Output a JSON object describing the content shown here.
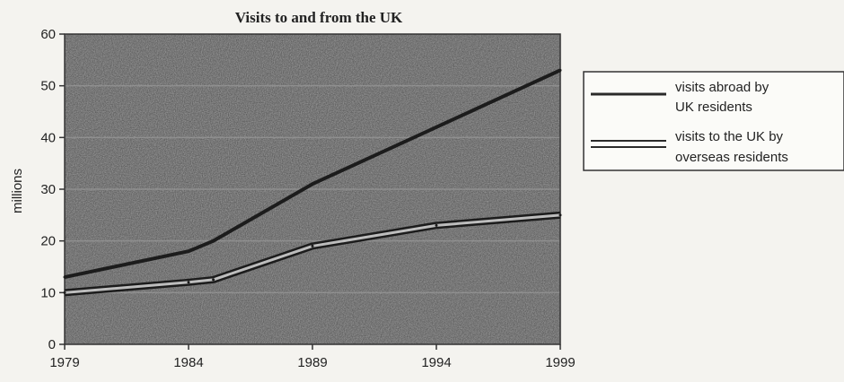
{
  "chart_data": {
    "type": "line",
    "title": "Visits to and from the UK",
    "xlabel": "",
    "ylabel": "millions",
    "x": [
      1979,
      1984,
      1985,
      1989,
      1994,
      1999
    ],
    "xticks": [
      1979,
      1984,
      1989,
      1994,
      1999
    ],
    "yticks": [
      0,
      10,
      20,
      30,
      40,
      50,
      60
    ],
    "xlim": [
      1979,
      1999
    ],
    "ylim": [
      0,
      60
    ],
    "grid": true,
    "legend_position": "right",
    "series": [
      {
        "name": "visits abroad by UK residents",
        "name_lines": [
          "visits abroad by",
          "UK residents"
        ],
        "style": "single",
        "values": [
          13,
          18,
          20,
          31,
          42,
          53
        ]
      },
      {
        "name": "visits to the UK by overseas residents",
        "name_lines": [
          "visits to the UK by",
          "overseas residents"
        ],
        "style": "double",
        "values": [
          10,
          12,
          12.5,
          19,
          23,
          25
        ]
      }
    ]
  }
}
